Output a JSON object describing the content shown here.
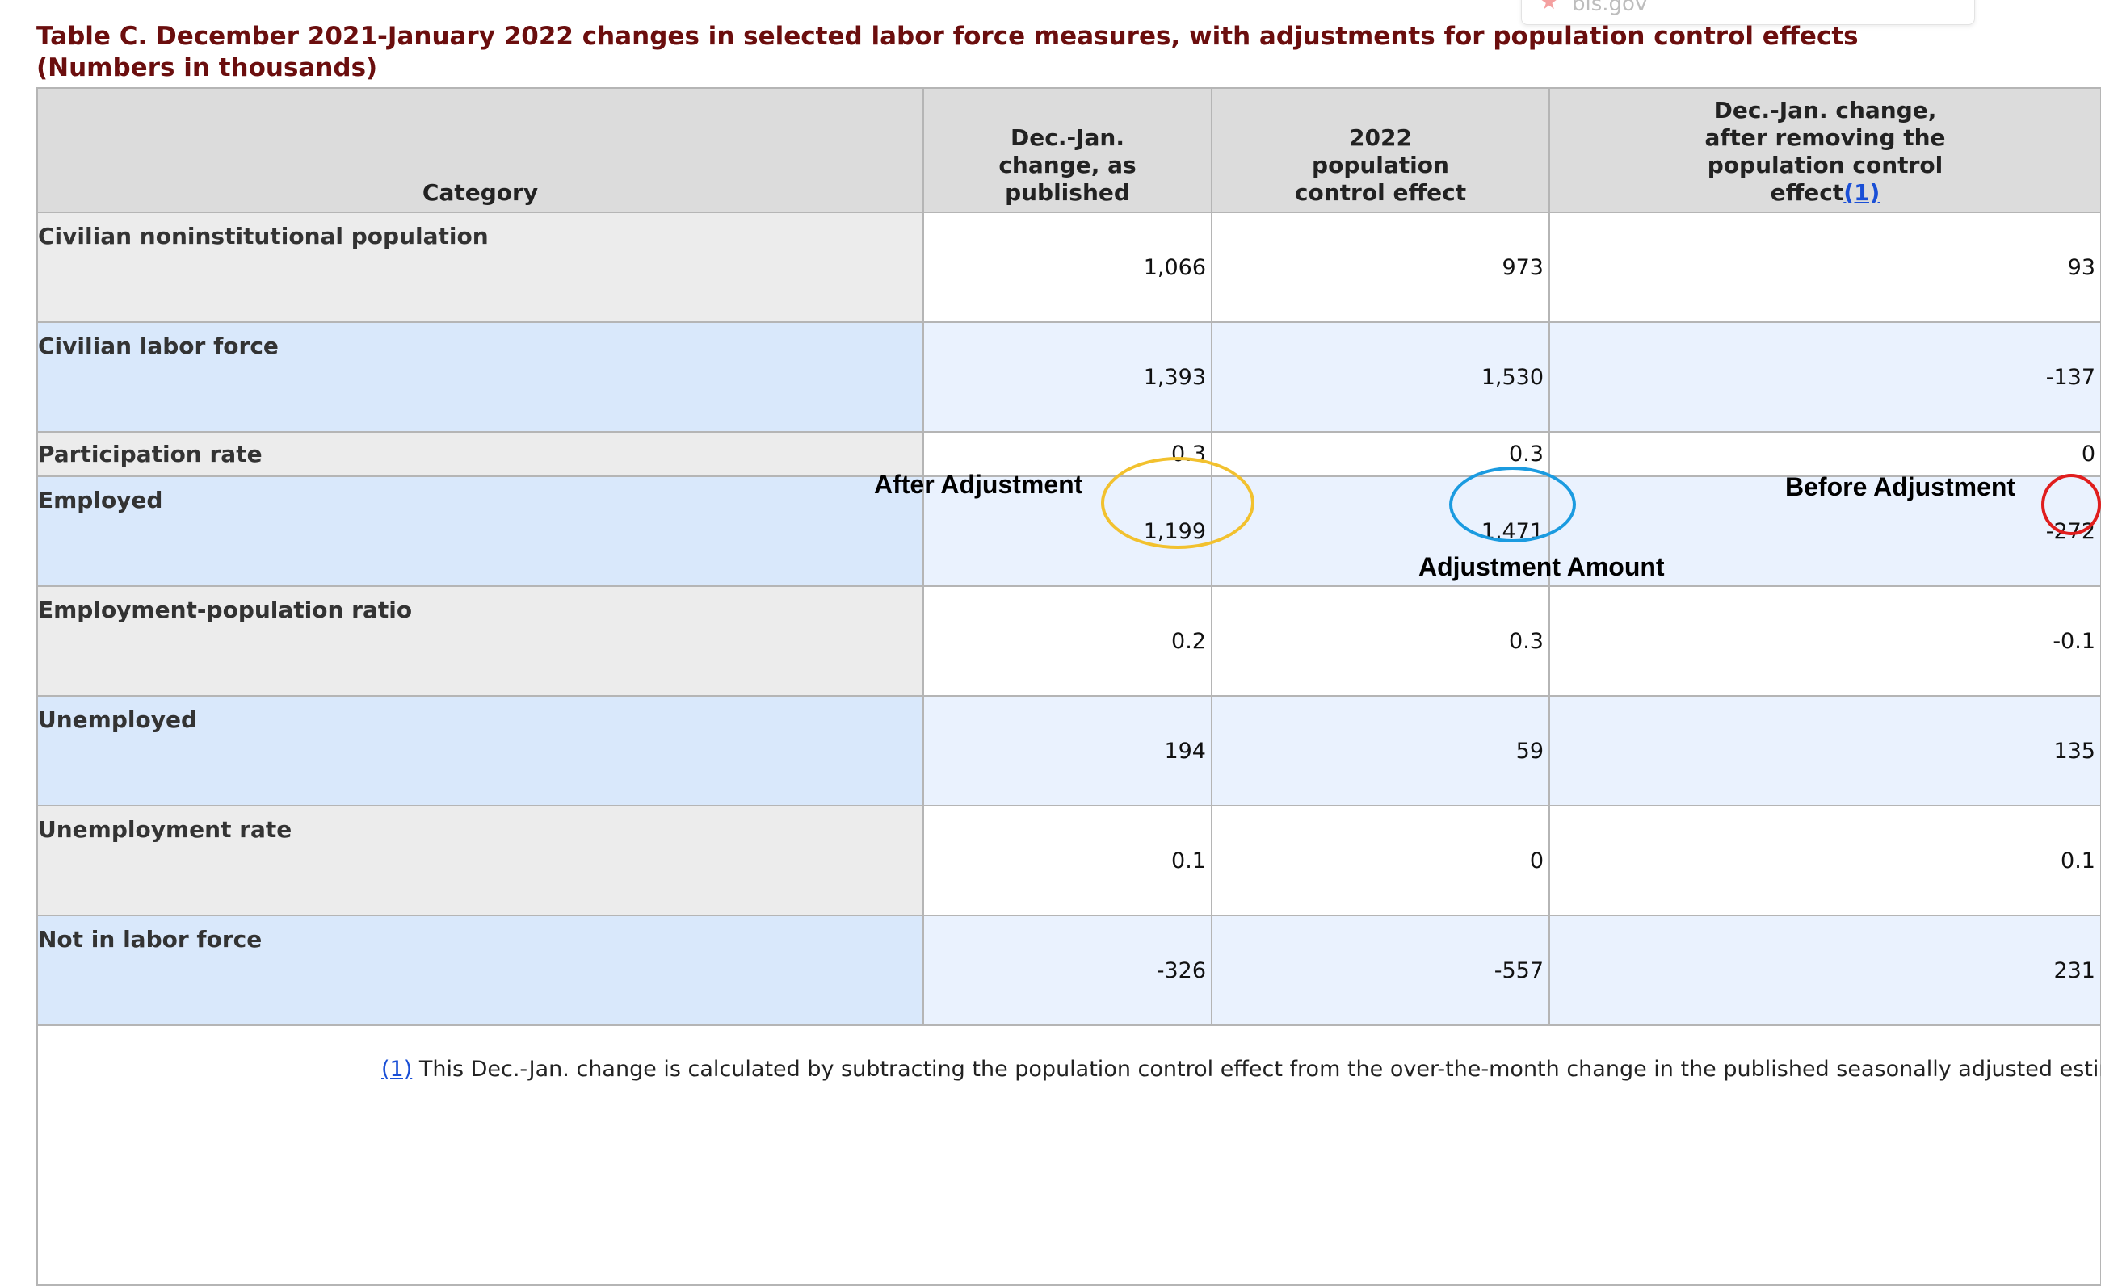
{
  "browser_popup": {
    "site": "bls.gov"
  },
  "caption": {
    "line1": "Table C. December 2021-January 2022 changes in selected labor force measures, with adjustments for population control effects",
    "line2": "(Numbers in thousands)"
  },
  "headers": {
    "category": "Category",
    "published": "Dec.-Jan. change, as published",
    "pop_effect": "2022 population control effect",
    "after_removing": "Dec.-Jan. change, after removing the population control effect",
    "footnote_ref": "(1)"
  },
  "rows": [
    {
      "category": "Civilian noninstitutional population",
      "published": "1,066",
      "pop_effect": "973",
      "after_removing": "93"
    },
    {
      "category": "Civilian labor force",
      "published": "1,393",
      "pop_effect": "1,530",
      "after_removing": "-137"
    },
    {
      "category": "Participation rate",
      "published": "0.3",
      "pop_effect": "0.3",
      "after_removing": "0"
    },
    {
      "category": "Employed",
      "published": "1,199",
      "pop_effect": "1,471",
      "after_removing": "-272"
    },
    {
      "category": "Employment-population ratio",
      "published": "0.2",
      "pop_effect": "0.3",
      "after_removing": "-0.1"
    },
    {
      "category": "Unemployed",
      "published": "194",
      "pop_effect": "59",
      "after_removing": "135"
    },
    {
      "category": "Unemployment rate",
      "published": "0.1",
      "pop_effect": "0",
      "after_removing": "0.1"
    },
    {
      "category": "Not in labor force",
      "published": "-326",
      "pop_effect": "-557",
      "after_removing": "231"
    }
  ],
  "footnote": {
    "ref": "(1)",
    "text": " This Dec.-Jan. change is calculated by subtracting the population control effect from the over-the-month change in the published seasonally adjusted estimates."
  },
  "annotations": {
    "after_adjustment": "After Adjustment",
    "adjustment_amount": "Adjustment Amount",
    "before_adjustment": "Before Adjustment",
    "colors": {
      "yellow": "#f2c12e",
      "blue": "#1b9be0",
      "red": "#e01e1e"
    }
  },
  "colors": {
    "caption": "#6b0e0e",
    "header_bg": "#dcdcdc",
    "row_gray": "#ececec",
    "row_blue": "#d9e8fb",
    "link": "#1a4fd6"
  }
}
